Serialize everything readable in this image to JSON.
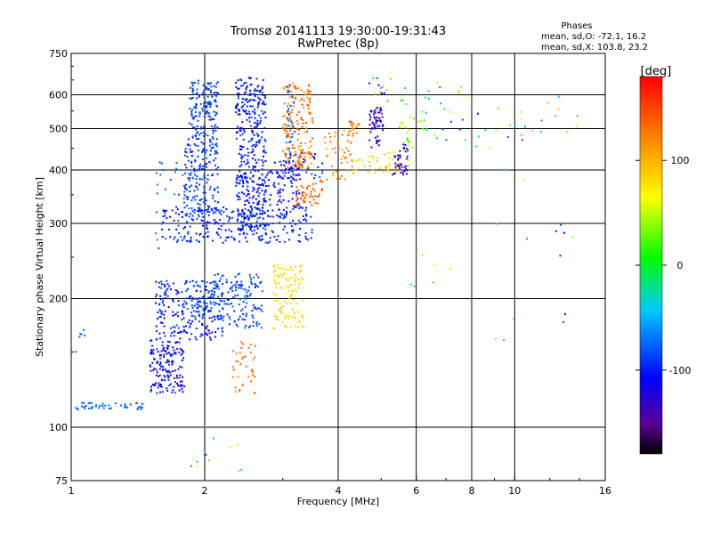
{
  "chart_data": {
    "type": "scatter",
    "title": "Tromsø 20141113 19:30:00-19:31:43",
    "subtitle": "RwPretec (8p)",
    "xlabel": "Frequency [MHz]",
    "ylabel": "Stationary phase Virtual Height [km]",
    "x_scale": "log",
    "y_scale": "log",
    "xlim": [
      1,
      16
    ],
    "ylim": [
      75,
      750
    ],
    "x_ticks": [
      1,
      2,
      4,
      6,
      8,
      10,
      16
    ],
    "x_tick_labels": [
      "1",
      "2",
      "4",
      "6",
      "8",
      "10",
      "16"
    ],
    "x_gridlines": [
      2,
      4,
      6,
      8,
      10
    ],
    "y_ticks": [
      75,
      100,
      200,
      300,
      400,
      500,
      600,
      750
    ],
    "y_tick_labels": [
      "75",
      "100",
      "200",
      "300",
      "400",
      "500",
      "600",
      "750"
    ],
    "y_gridlines": [
      100,
      200,
      300,
      400,
      500,
      600
    ],
    "grid": true,
    "stats": {
      "heading": "Phases",
      "line_o": "mean, sd,O: -72.1, 16.2",
      "line_x": "mean, sd,X: 103.8, 23.2"
    },
    "colorbar": {
      "unit": "[deg]",
      "range": [
        -180,
        180
      ],
      "ticks": [
        100,
        0,
        -100
      ],
      "tick_labels": [
        "100",
        "0",
        "-100"
      ],
      "colormap": "rainbow"
    },
    "clusters": [
      {
        "f": [
          1.0,
          1.45
        ],
        "h": [
          110,
          114
        ],
        "phase": [
          -85,
          -70
        ],
        "n": 45
      },
      {
        "f": [
          1.0,
          1.08
        ],
        "h": [
          150,
          170
        ],
        "phase": [
          -80,
          -70
        ],
        "n": 6
      },
      {
        "f": [
          1.5,
          1.8
        ],
        "h": [
          120,
          160
        ],
        "phase": [
          -130,
          -90
        ],
        "n": 160
      },
      {
        "f": [
          1.55,
          2.2
        ],
        "h": [
          160,
          220
        ],
        "phase": [
          -120,
          -80
        ],
        "n": 220
      },
      {
        "f": [
          1.8,
          2.15
        ],
        "h": [
          180,
          220
        ],
        "phase": [
          -90,
          -70
        ],
        "n": 60
      },
      {
        "f": [
          2.1,
          2.7
        ],
        "h": [
          170,
          230
        ],
        "phase": [
          -100,
          -70
        ],
        "n": 140
      },
      {
        "f": [
          1.6,
          3.5
        ],
        "h": [
          270,
          330
        ],
        "phase": [
          -110,
          -85
        ],
        "n": 260
      },
      {
        "f": [
          1.8,
          2.15
        ],
        "h": [
          310,
          520
        ],
        "phase": [
          -100,
          -80
        ],
        "n": 220
      },
      {
        "f": [
          1.85,
          2.15
        ],
        "h": [
          520,
          650
        ],
        "phase": [
          -95,
          -80
        ],
        "n": 120
      },
      {
        "f": [
          2.35,
          2.75
        ],
        "h": [
          290,
          660
        ],
        "phase": [
          -115,
          -85
        ],
        "n": 380
      },
      {
        "f": [
          2.75,
          3.3
        ],
        "h": [
          330,
          420
        ],
        "phase": [
          -120,
          -100
        ],
        "n": 70
      },
      {
        "f": [
          3.0,
          3.7
        ],
        "h": [
          380,
          440
        ],
        "phase": [
          -110,
          -80
        ],
        "n": 50
      },
      {
        "f": [
          3.0,
          3.5
        ],
        "h": [
          400,
          640
        ],
        "phase": [
          100,
          150
        ],
        "n": 170
      },
      {
        "f": [
          3.05,
          3.2
        ],
        "h": [
          440,
          650
        ],
        "phase": [
          -100,
          -60
        ],
        "n": 25
      },
      {
        "f": [
          3.2,
          3.7
        ],
        "h": [
          330,
          380
        ],
        "phase": [
          130,
          150
        ],
        "n": 50
      },
      {
        "f": [
          2.85,
          3.35
        ],
        "h": [
          170,
          240
        ],
        "phase": [
          70,
          90
        ],
        "n": 120
      },
      {
        "f": [
          2.3,
          2.6
        ],
        "h": [
          120,
          160
        ],
        "phase": [
          110,
          140
        ],
        "n": 40
      },
      {
        "f": [
          3.7,
          4.3
        ],
        "h": [
          380,
          500
        ],
        "phase": [
          100,
          140
        ],
        "n": 50
      },
      {
        "f": [
          4.2,
          4.5
        ],
        "h": [
          480,
          520
        ],
        "phase": [
          100,
          150
        ],
        "n": 20
      },
      {
        "f": [
          4.7,
          5.05
        ],
        "h": [
          450,
          560
        ],
        "phase": [
          -130,
          -110
        ],
        "n": 60
      },
      {
        "f": [
          4.3,
          5.5
        ],
        "h": [
          390,
          440
        ],
        "phase": [
          70,
          100
        ],
        "n": 40
      },
      {
        "f": [
          5.3,
          5.75
        ],
        "h": [
          390,
          460
        ],
        "phase": [
          -140,
          -115
        ],
        "n": 40
      },
      {
        "f": [
          5.5,
          5.9
        ],
        "h": [
          400,
          520
        ],
        "phase": [
          30,
          80
        ],
        "n": 20
      },
      {
        "f": [
          4.7,
          5.3
        ],
        "h": [
          540,
          660
        ],
        "phase": [
          -140,
          130
        ],
        "n": 15
      },
      {
        "f": [
          5.5,
          6.3
        ],
        "h": [
          470,
          640
        ],
        "phase": [
          -80,
          60
        ],
        "n": 15
      },
      {
        "f": [
          6.2,
          7.8
        ],
        "h": [
          460,
          650
        ],
        "phase": [
          -100,
          80
        ],
        "n": 20
      },
      {
        "f": [
          7.5,
          10.5
        ],
        "h": [
          450,
          560
        ],
        "phase": [
          -120,
          100
        ],
        "n": 15
      },
      {
        "f": [
          10,
          14
        ],
        "h": [
          480,
          620
        ],
        "phase": [
          -120,
          160
        ],
        "n": 12
      },
      {
        "f": [
          1.55,
          1.9
        ],
        "h": [
          260,
          420
        ],
        "phase": [
          -90,
          -60
        ],
        "n": 40
      },
      {
        "f": [
          1.85,
          2.5
        ],
        "h": [
          78,
          100
        ],
        "phase": [
          -100,
          120
        ],
        "n": 12
      },
      {
        "f": [
          5.8,
          7.5
        ],
        "h": [
          200,
          260
        ],
        "phase": [
          -60,
          110
        ],
        "n": 6
      },
      {
        "f": [
          9,
          16
        ],
        "h": [
          150,
          420
        ],
        "phase": [
          -140,
          100
        ],
        "n": 14
      }
    ]
  }
}
